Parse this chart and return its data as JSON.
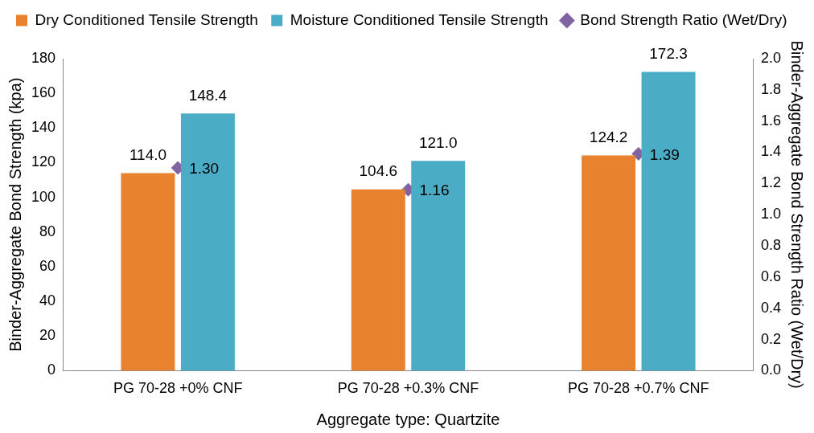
{
  "chart_data": {
    "type": "bar",
    "xlabel": "Aggregate type: Quartzite",
    "ylabel": "Binder-Aggregate Bond Strength (kpa)",
    "y2label": "Binder-Aggregate Bond Strength Ratio (Wet/Dry)",
    "categories": [
      "PG 70-28 +0% CNF",
      "PG 70-28 +0.3% CNF",
      "PG 70-28 +0.7% CNF"
    ],
    "series": [
      {
        "name": "Dry Conditioned Tensile Strength",
        "color": "#e8822e",
        "values": [
          114.0,
          104.6,
          124.2
        ],
        "value_labels": [
          "114.0",
          "104.6",
          "124.2"
        ]
      },
      {
        "name": "Moisture Conditioned Tensile Strength",
        "color": "#4bacc6",
        "values": [
          148.4,
          121.0,
          172.3
        ],
        "value_labels": [
          "148.4",
          "121.0",
          "172.3"
        ]
      },
      {
        "name": "Bond Strength Ratio (Wet/Dry)",
        "type": "scatter",
        "axis": "y2",
        "color": "#8064a2",
        "x": [
          "PG 70-28 +0% CNF",
          "PG 70-28 +0.3% CNF",
          "PG 70-28 +0.7% CNF"
        ],
        "values": [
          1.3,
          1.16,
          1.39
        ],
        "value_labels": [
          "1.30",
          "1.16",
          "1.39"
        ]
      }
    ],
    "ylim": [
      0,
      180
    ],
    "yticks": [
      0,
      20,
      40,
      60,
      80,
      100,
      120,
      140,
      160,
      180
    ],
    "y2lim": [
      0,
      2
    ],
    "y2ticks": [
      {
        "value": 0,
        "label": "0.0"
      },
      {
        "value": 0.2,
        "label": "0.2"
      },
      {
        "value": 0.4,
        "label": "0.4"
      },
      {
        "value": 0.6,
        "label": "0.6"
      },
      {
        "value": 0.8,
        "label": "0.8"
      },
      {
        "value": 1,
        "label": "1.0"
      },
      {
        "value": 1.2,
        "label": "1.2"
      },
      {
        "value": 1.4,
        "label": "1.4"
      },
      {
        "value": 1.6,
        "label": "1.6"
      },
      {
        "value": 1.8,
        "label": "1.8"
      },
      {
        "value": 2,
        "label": "2.0"
      }
    ],
    "grid": false,
    "legend": "top",
    "marker": "diamond"
  }
}
